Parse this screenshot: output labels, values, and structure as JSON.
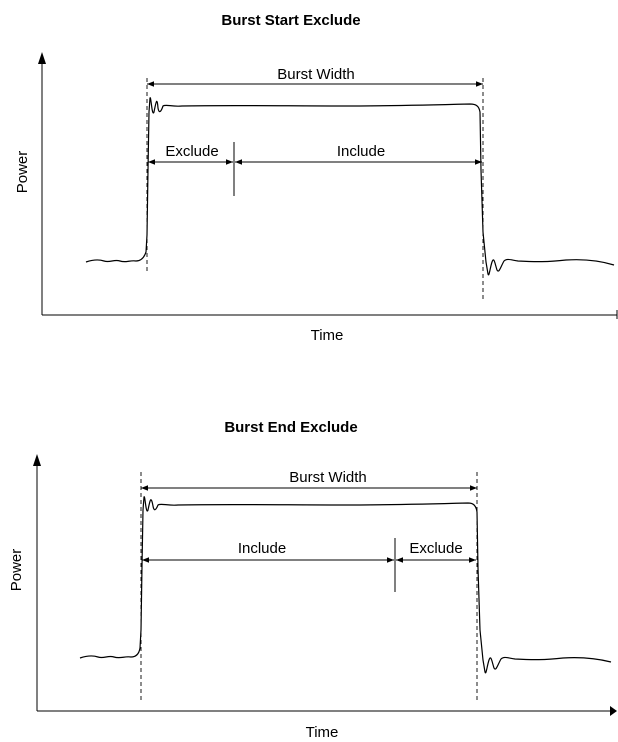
{
  "diagrams": [
    {
      "title": "Burst Start Exclude",
      "ylabel": "Power",
      "xlabel": "Time",
      "top_span": "Burst Width",
      "spans": [
        {
          "label": "Exclude"
        },
        {
          "label": "Include"
        }
      ]
    },
    {
      "title": "Burst End Exclude",
      "ylabel": "Power",
      "xlabel": "Time",
      "top_span": "Burst Width",
      "spans": [
        {
          "label": "Include"
        },
        {
          "label": "Exclude"
        }
      ]
    }
  ]
}
